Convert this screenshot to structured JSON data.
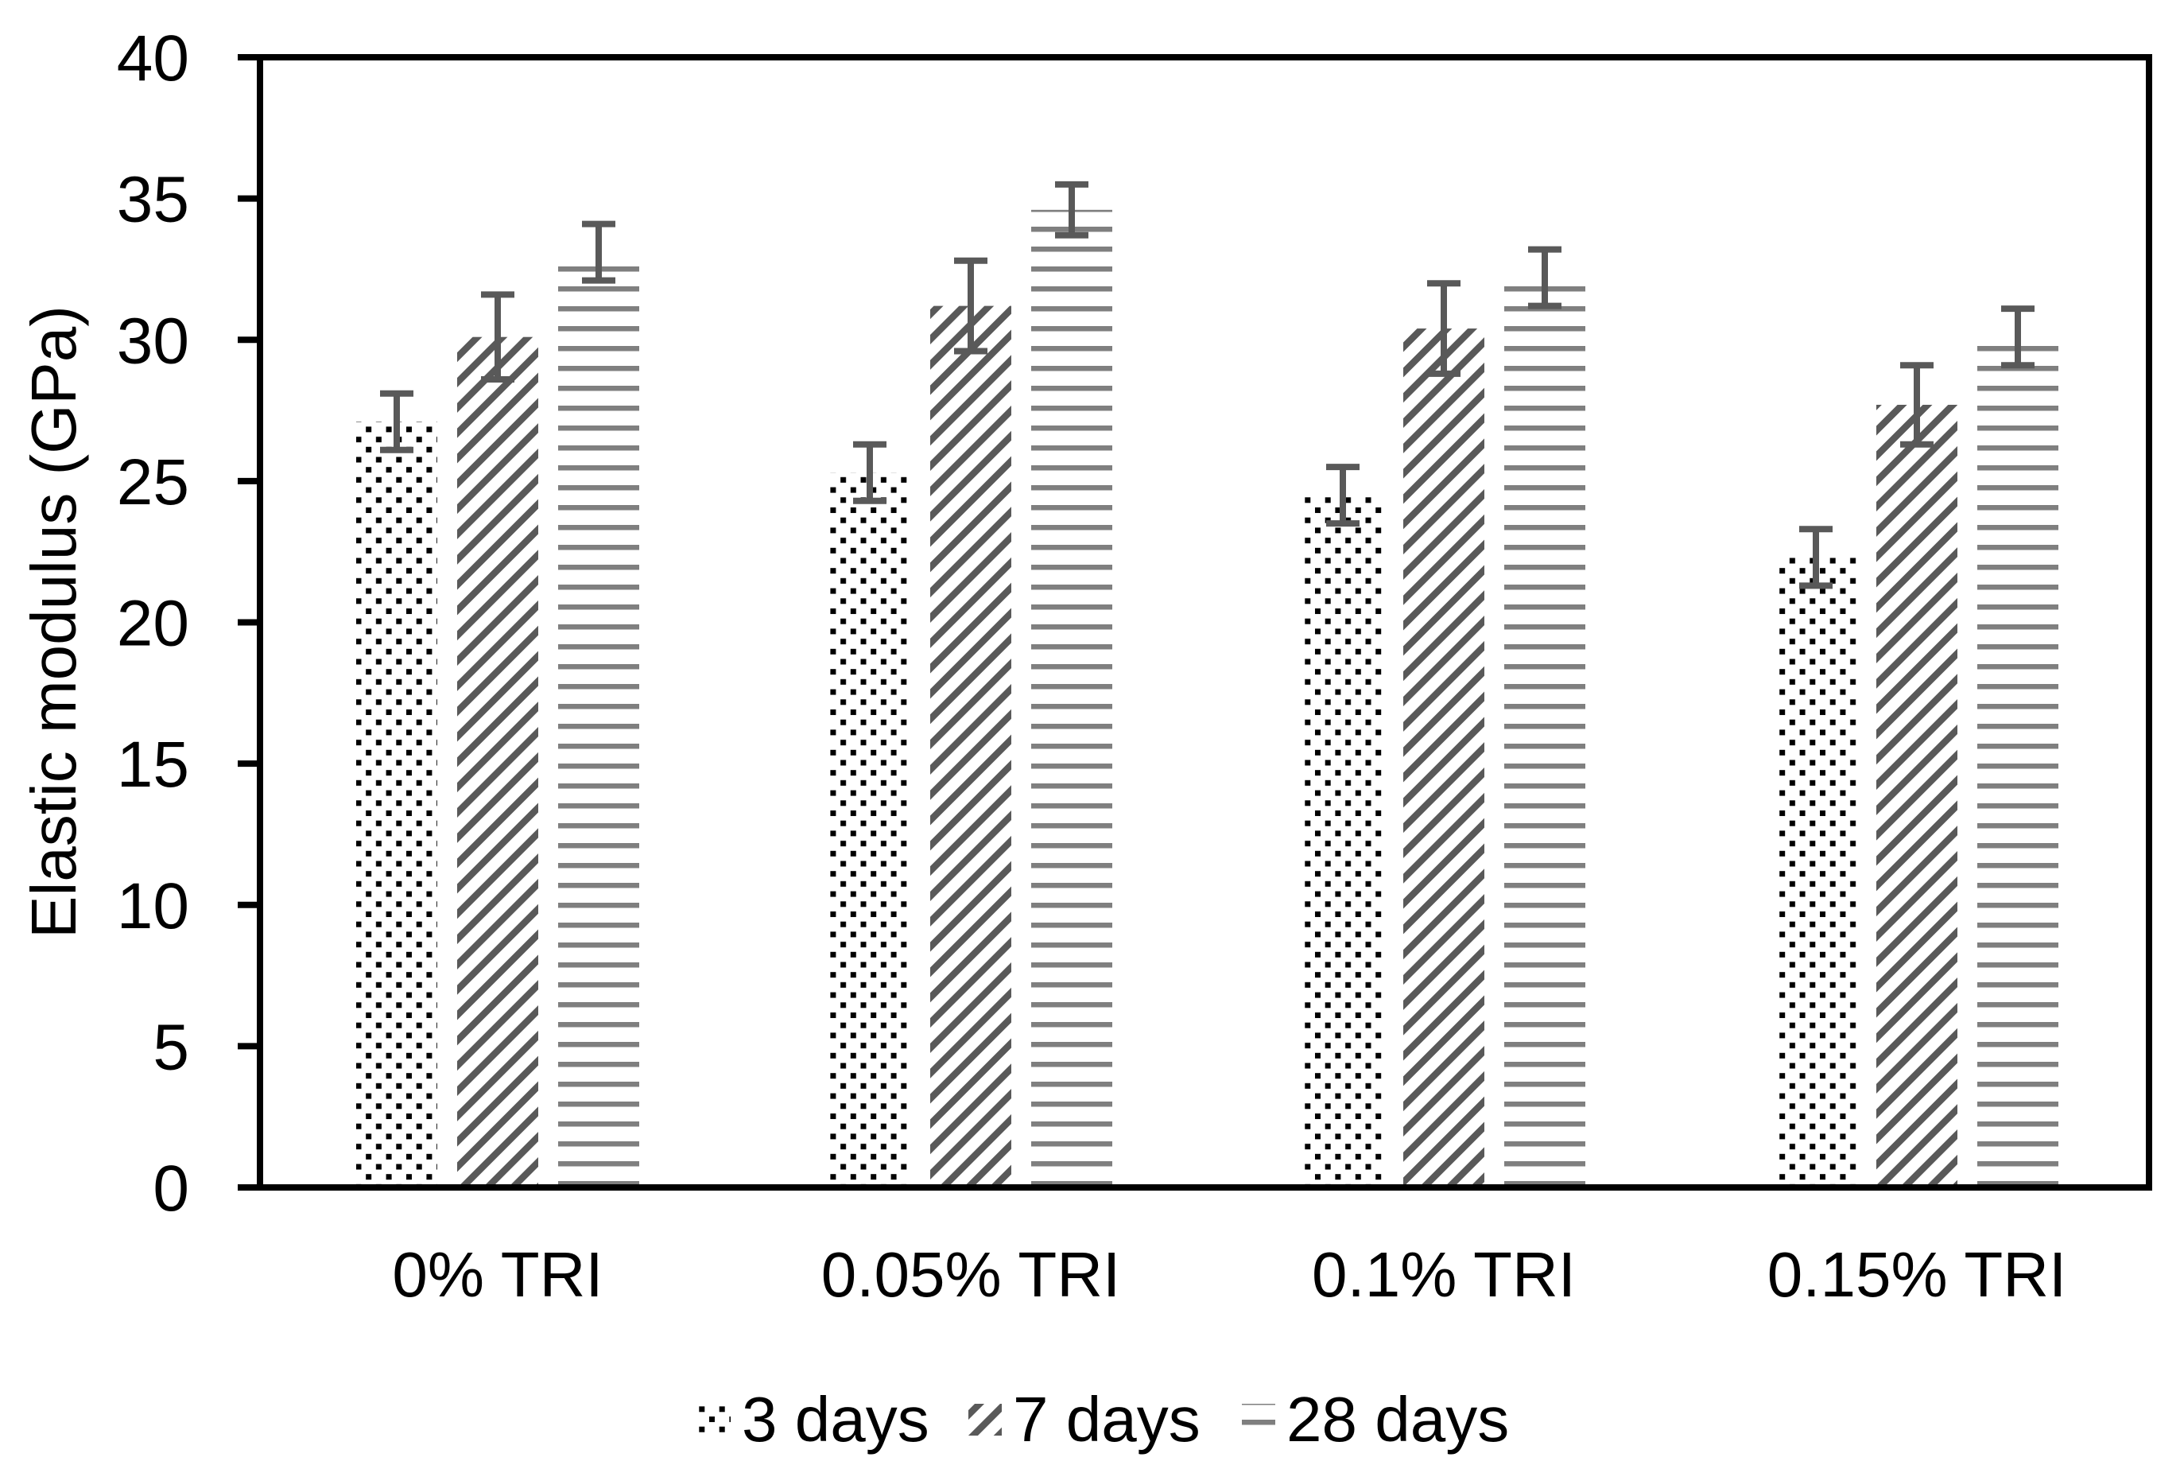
{
  "chart_data": {
    "type": "bar",
    "title": "",
    "xlabel": "",
    "ylabel": "Elastic modulus (GPa)",
    "categories": [
      "0% TRI",
      "0.05% TRI",
      "0.1% TRI",
      "0.15% TRI"
    ],
    "series": [
      {
        "name": "3 days",
        "pattern": "dots",
        "values": [
          27.1,
          25.3,
          24.5,
          22.3
        ],
        "errors": [
          1.0,
          1.0,
          1.0,
          1.0
        ]
      },
      {
        "name": "7 days",
        "pattern": "diagonal",
        "values": [
          30.1,
          31.2,
          30.4,
          27.7
        ],
        "errors": [
          1.5,
          1.6,
          1.6,
          1.4
        ]
      },
      {
        "name": "28 days",
        "pattern": "horizontal",
        "values": [
          33.1,
          34.6,
          32.2,
          30.1
        ],
        "errors": [
          1.0,
          0.9,
          1.0,
          1.0
        ]
      }
    ],
    "ylim": [
      0,
      40
    ],
    "yticks": [
      0,
      5,
      10,
      15,
      20,
      25,
      30,
      35,
      40
    ],
    "grid": false,
    "legend_position": "bottom",
    "error_bars": true,
    "colors": {
      "dots": "#000000",
      "diagonal": "#595959",
      "horizontal": "#7f7f7f",
      "error": "#595959",
      "axis": "#000000",
      "background": "#ffffff"
    }
  }
}
